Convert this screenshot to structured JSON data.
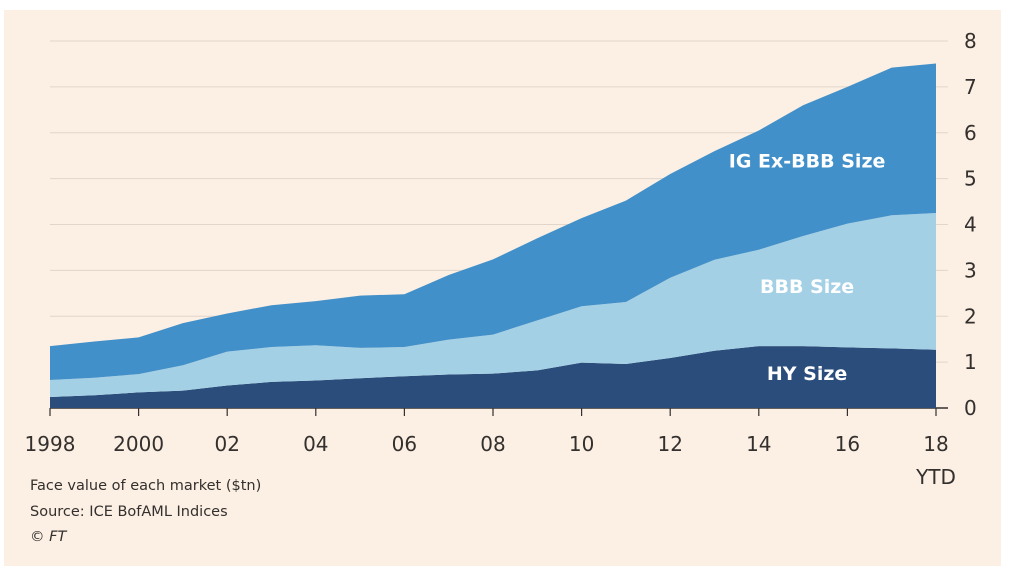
{
  "chart_data": {
    "type": "area",
    "stacked": true,
    "x": [
      1998,
      1999,
      2000,
      2001,
      2002,
      2003,
      2004,
      2005,
      2006,
      2007,
      2008,
      2009,
      2010,
      2011,
      2012,
      2013,
      2014,
      2015,
      2016,
      2017,
      2018
    ],
    "x_tick_labels": [
      "1998",
      "2000",
      "02",
      "04",
      "06",
      "08",
      "10",
      "12",
      "14",
      "16",
      "18"
    ],
    "x_tick_values": [
      1998,
      2000,
      2002,
      2004,
      2006,
      2008,
      2010,
      2012,
      2014,
      2016,
      2018
    ],
    "x_sub_label": "YTD",
    "y_ticks": [
      0,
      1,
      2,
      3,
      4,
      5,
      6,
      7,
      8
    ],
    "ylim": [
      0,
      8
    ],
    "xlim": [
      1998,
      2018
    ],
    "grid": true,
    "y_axis_position": "right",
    "series": [
      {
        "name": "HY Size",
        "color": "#2a4d7c",
        "values": [
          0.24,
          0.28,
          0.34,
          0.38,
          0.49,
          0.57,
          0.6,
          0.65,
          0.69,
          0.73,
          0.75,
          0.82,
          0.99,
          0.96,
          1.09,
          1.25,
          1.35,
          1.35,
          1.32,
          1.3,
          1.27
        ]
      },
      {
        "name": "BBB Size",
        "color": "#a4d0e6",
        "values": [
          0.37,
          0.38,
          0.4,
          0.55,
          0.74,
          0.76,
          0.77,
          0.66,
          0.64,
          0.76,
          0.85,
          1.09,
          1.23,
          1.35,
          1.75,
          1.98,
          2.1,
          2.4,
          2.7,
          2.9,
          2.98
        ]
      },
      {
        "name": "IG Ex-BBB Size",
        "color": "#4290c9",
        "values": [
          0.74,
          0.79,
          0.8,
          0.92,
          0.83,
          0.91,
          0.96,
          1.14,
          1.15,
          1.41,
          1.64,
          1.79,
          1.92,
          2.21,
          2.26,
          2.37,
          2.6,
          2.85,
          2.98,
          3.22,
          3.26
        ]
      }
    ]
  },
  "footnotes": {
    "subtitle": "Face value of each market ($tn)",
    "source": "Source: ICE BofAML Indices",
    "credit": "© FT"
  }
}
